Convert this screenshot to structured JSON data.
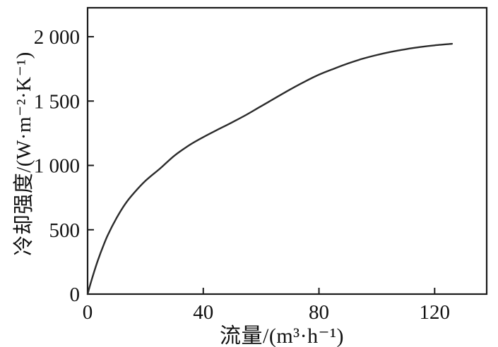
{
  "figure": {
    "background": "#ffffff",
    "axis_color": "#1a1a1a",
    "tick_label_color": "#111111",
    "curve_color": "#2b2b2b"
  },
  "chart_data": {
    "type": "line",
    "title": "",
    "xlabel": "流量/(m³·h⁻¹)",
    "ylabel": "冷却强度/(W·m⁻²·K⁻¹)",
    "xlim": [
      0,
      138
    ],
    "ylim": [
      0,
      2225
    ],
    "grid": false,
    "legend": "none",
    "x_ticks": {
      "values": [
        0,
        40,
        80,
        120
      ],
      "labels": [
        "0",
        "40",
        "80",
        "120"
      ]
    },
    "y_ticks": {
      "values": [
        0,
        500,
        1000,
        1500,
        2000
      ],
      "labels": [
        "0",
        "500",
        "1 000",
        "1 500",
        "2 000"
      ]
    },
    "series": [
      {
        "name": "cooling-intensity-vs-flow",
        "x": [
          0,
          1,
          2,
          3,
          4,
          5,
          7,
          10,
          13,
          16,
          20,
          25,
          30,
          35,
          40,
          45,
          50,
          55,
          60,
          65,
          70,
          75,
          80,
          85,
          90,
          95,
          100,
          105,
          110,
          115,
          120,
          126
        ],
        "y": [
          0,
          80,
          155,
          225,
          290,
          350,
          460,
          590,
          700,
          785,
          880,
          975,
          1075,
          1155,
          1220,
          1278,
          1335,
          1395,
          1460,
          1525,
          1590,
          1650,
          1705,
          1750,
          1792,
          1828,
          1858,
          1883,
          1903,
          1920,
          1933,
          1945
        ]
      }
    ]
  }
}
